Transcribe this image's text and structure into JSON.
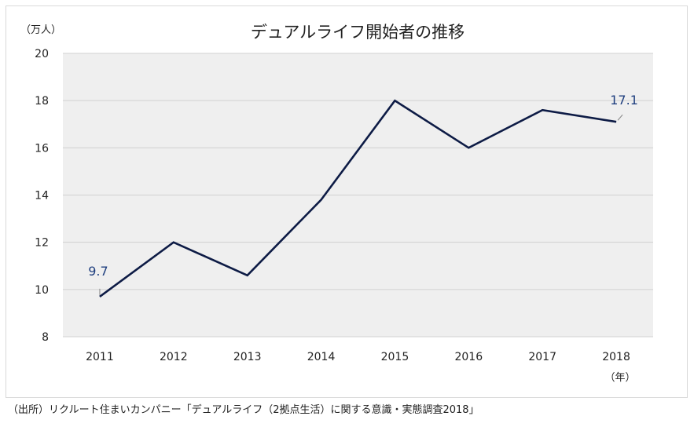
{
  "chart_data": {
    "type": "line",
    "title": "デュアルライフ開始者の推移",
    "ylabel": "（万人）",
    "xlabel": "（年）",
    "categories": [
      "2011",
      "2012",
      "2013",
      "2014",
      "2015",
      "2016",
      "2017",
      "2018"
    ],
    "series": [
      {
        "name": "デュアルライフ開始者",
        "values": [
          9.7,
          12.0,
          10.6,
          13.8,
          18.0,
          16.0,
          17.6,
          17.1
        ],
        "color": "#0d1b45"
      }
    ],
    "ylim": [
      8,
      20
    ],
    "yticks": [
      8,
      10,
      12,
      14,
      16,
      18,
      20
    ],
    "grid": true,
    "data_labels": [
      {
        "index": 0,
        "text": "9.7"
      },
      {
        "index": 7,
        "text": "17.1"
      }
    ],
    "colors": {
      "plot_background": "#efefef",
      "gridline": "#d0d0d0",
      "data_label": "#1f3f7f"
    }
  },
  "source": "（出所）リクルート住まいカンパニー「デュアルライフ（2拠点生活）に関する意識・実態調査2018」"
}
